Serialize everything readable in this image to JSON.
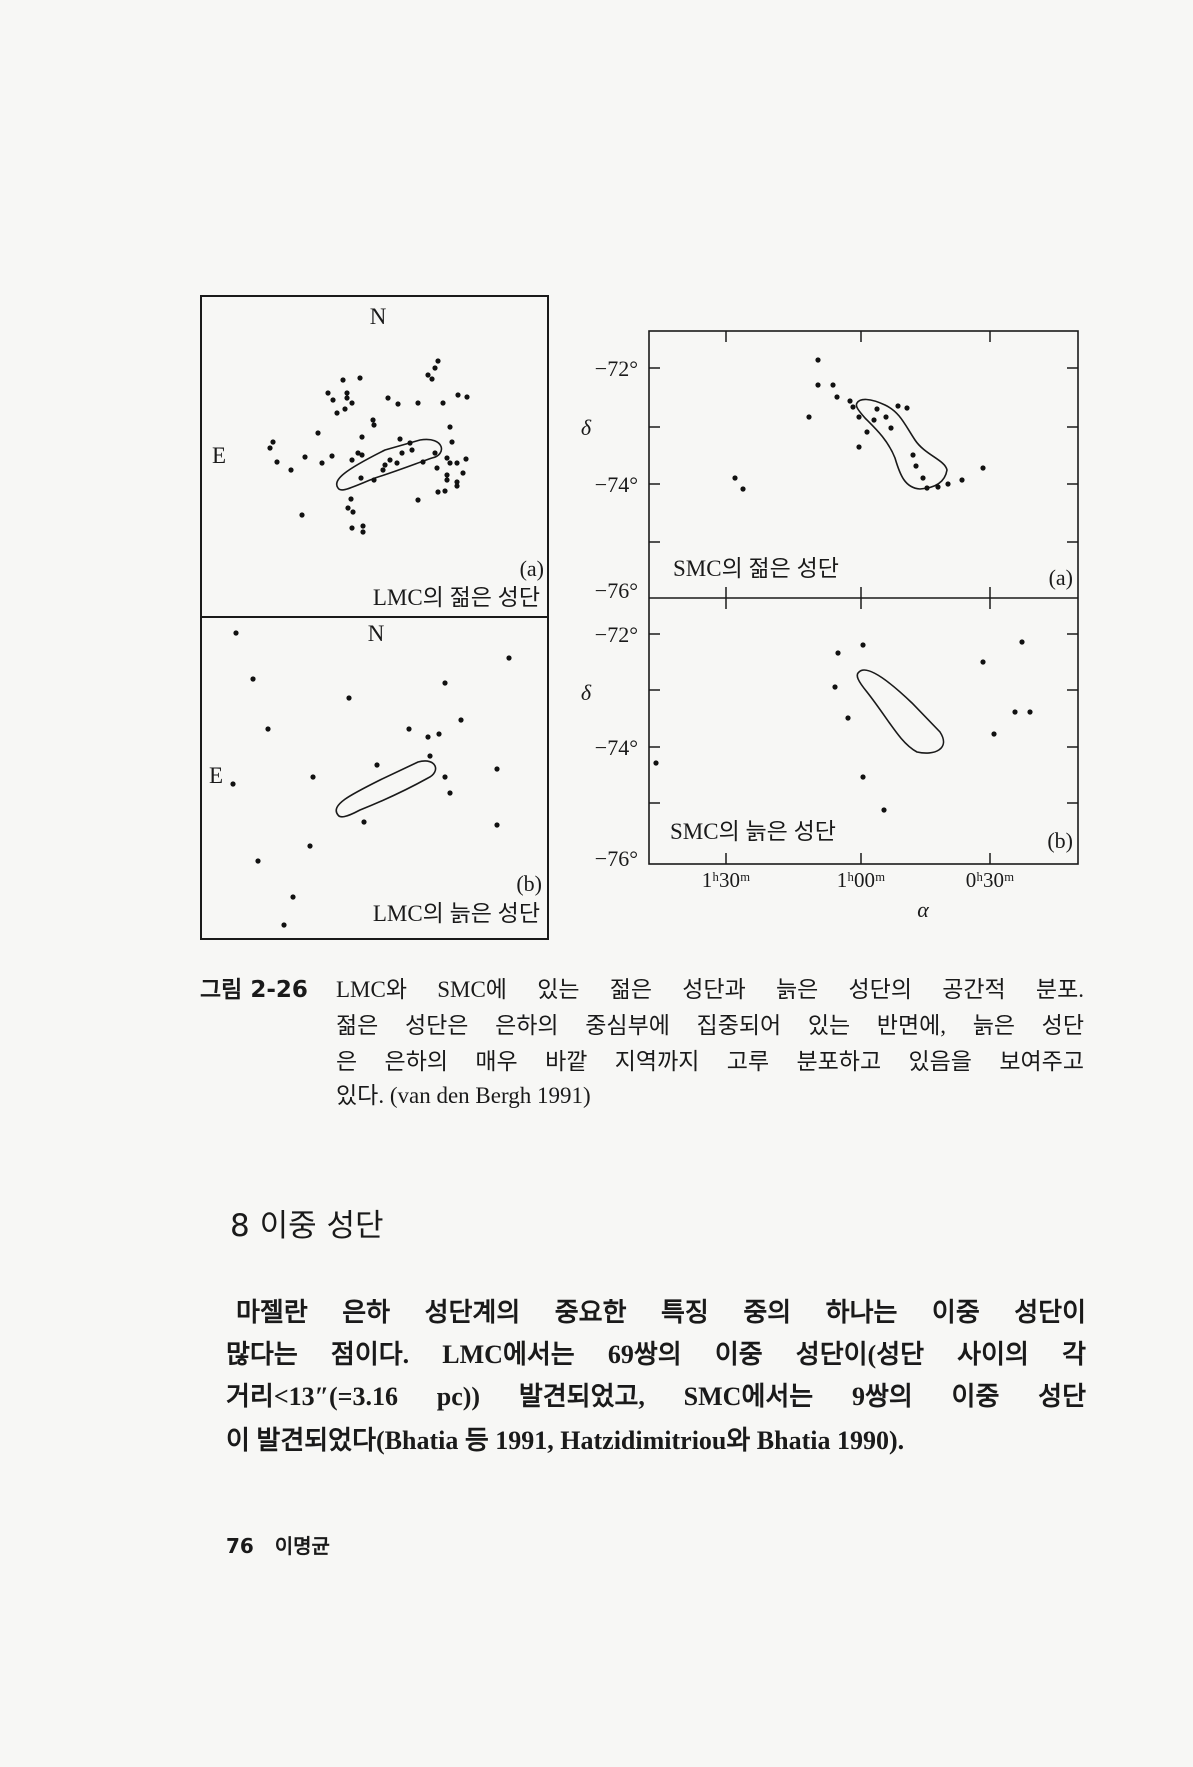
{
  "figure": {
    "lmc_panel_a": {
      "north_label": "N",
      "east_label": "E",
      "panel_tag": "(a)",
      "title": "LMC의 젊은 성단"
    },
    "lmc_panel_b": {
      "north_label": "N",
      "east_label": "E",
      "panel_tag": "(b)",
      "title": "LMC의 늙은 성단"
    },
    "smc_panel_a": {
      "panel_tag": "(a)",
      "title": "SMC의 젊은 성단",
      "y_axis_label": "δ",
      "y_ticks": [
        "−72°",
        "−74°",
        "−76°"
      ]
    },
    "smc_panel_b": {
      "panel_tag": "(b)",
      "title": "SMC의 늙은 성단",
      "y_axis_label": "δ",
      "y_ticks": [
        "−72°",
        "−74°",
        "−76°"
      ],
      "x_ticks": [
        "1ʰ30ᵐ",
        "1ʰ00ᵐ",
        "0ʰ30ᵐ"
      ],
      "x_axis_label": "α"
    }
  },
  "caption": {
    "label": "그림 2-26",
    "lines": [
      "LMC와 SMC에 있는 젊은 성단과 늙은 성단의 공간적 분포.",
      "젊은 성단은 은하의 중심부에 집중되어 있는 반면에, 늙은 성단",
      "은 은하의 매우 바깥 지역까지 고루 분포하고 있음을 보여주고",
      "있다. (van den Bergh 1991)"
    ]
  },
  "section": {
    "heading": "8  이중 성단",
    "body_lines": [
      "마젤란 은하 성단계의 중요한 특징 중의 하나는 이중 성단이",
      "많다는 점이다. LMC에서는 69쌍의 이중 성단이(성단 사이의 각",
      "거리<13″(=3.16 pc)) 발견되었고, SMC에서는 9쌍의 이중 성단",
      "이 발견되었다(Bhatia 등 1991, Hatzidimitriou와 Bhatia 1990)."
    ]
  },
  "footer": {
    "page_number": "76",
    "author": "이명균"
  }
}
